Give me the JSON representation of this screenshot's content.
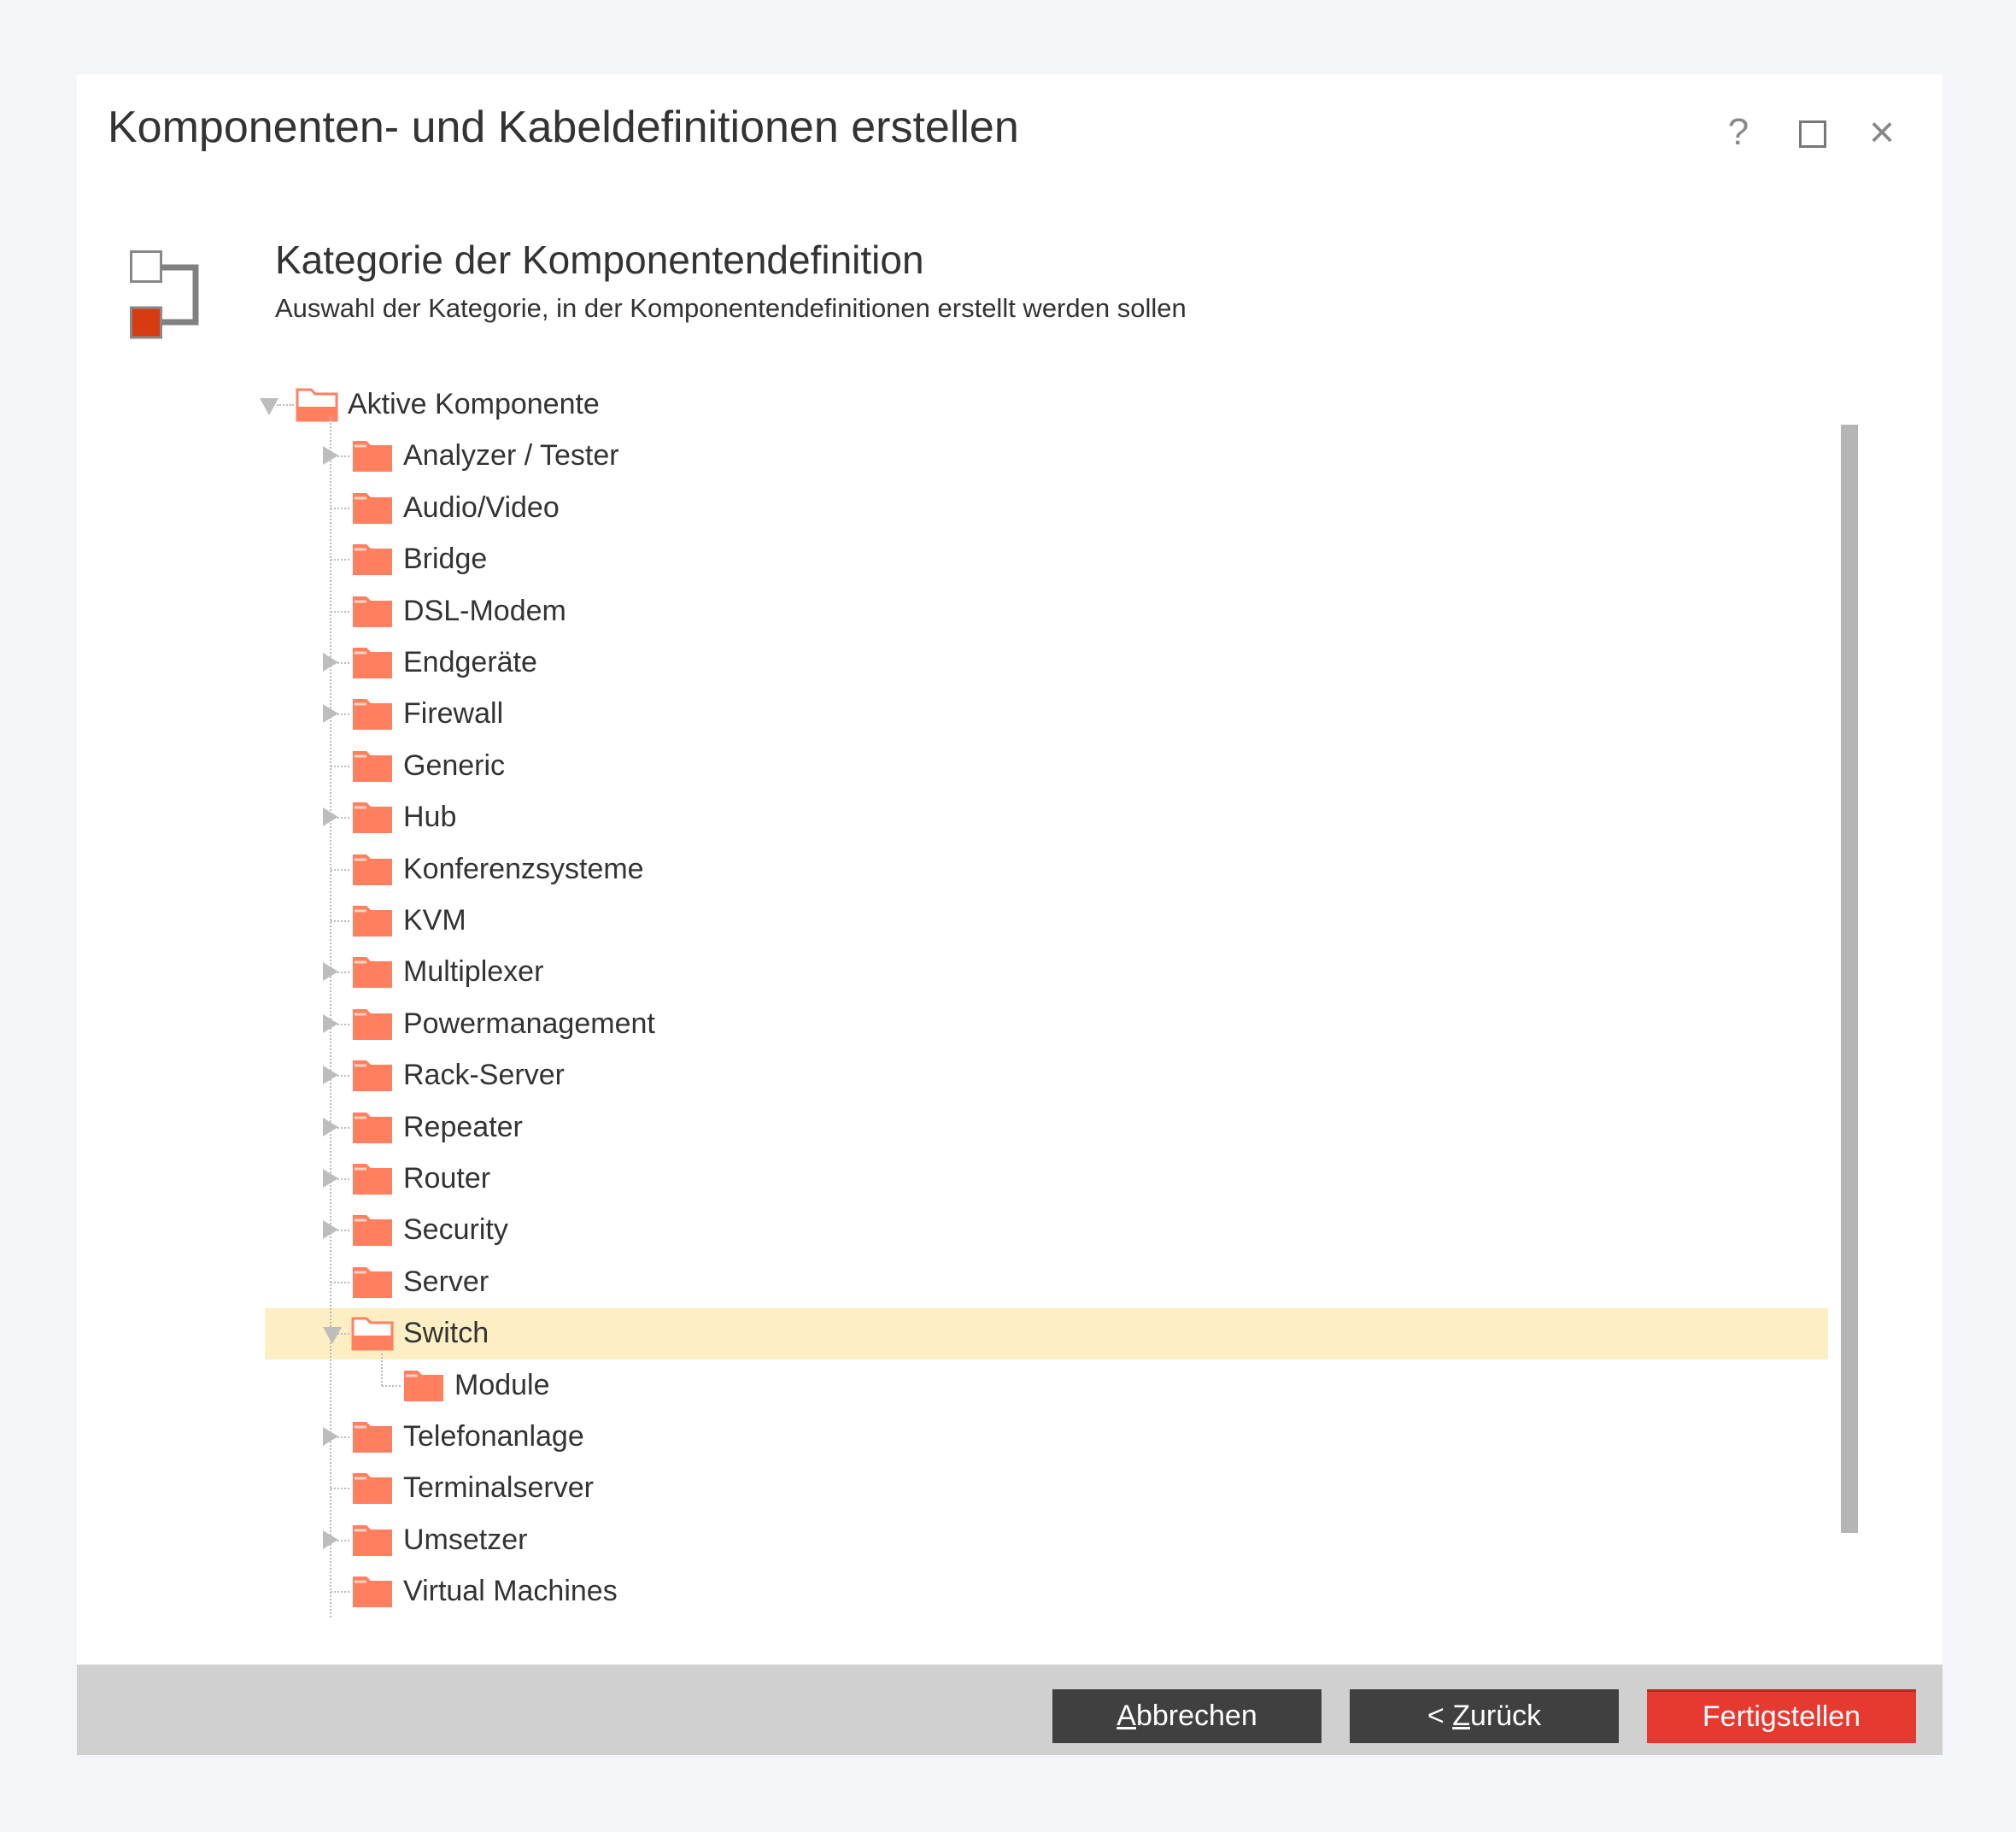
{
  "window": {
    "title": "Komponenten- und Kabeldefinitionen erstellen",
    "controls": {
      "help": "?",
      "close": "×"
    }
  },
  "header": {
    "icon": "component-hierarchy-icon",
    "title": "Kategorie der Komponentendefinition",
    "subtitle": "Auswahl der Kategorie, in der Komponentendefinitionen erstellt werden sollen"
  },
  "colors": {
    "accent": "#e63a30",
    "folder": "#ff7f5f",
    "selection": "#fdefc3",
    "button_dark": "#404040"
  },
  "tree": {
    "root": {
      "label": "Aktive Komponente",
      "expanded": true
    },
    "items": [
      {
        "label": "Analyzer / Tester",
        "expandable": true
      },
      {
        "label": "Audio/Video",
        "expandable": false
      },
      {
        "label": "Bridge",
        "expandable": false
      },
      {
        "label": "DSL-Modem",
        "expandable": false
      },
      {
        "label": "Endgeräte",
        "expandable": true
      },
      {
        "label": "Firewall",
        "expandable": true
      },
      {
        "label": "Generic",
        "expandable": false
      },
      {
        "label": "Hub",
        "expandable": true
      },
      {
        "label": "Konferenzsysteme",
        "expandable": false
      },
      {
        "label": "KVM",
        "expandable": false
      },
      {
        "label": "Multiplexer",
        "expandable": true
      },
      {
        "label": "Powermanagement",
        "expandable": true
      },
      {
        "label": "Rack-Server",
        "expandable": true
      },
      {
        "label": "Repeater",
        "expandable": true
      },
      {
        "label": "Router",
        "expandable": true
      },
      {
        "label": "Security",
        "expandable": true
      },
      {
        "label": "Server",
        "expandable": false
      },
      {
        "label": "Switch",
        "expandable": true,
        "expanded": true,
        "selected": true,
        "children": [
          {
            "label": "Module"
          }
        ]
      },
      {
        "label": "Telefonanlage",
        "expandable": true
      },
      {
        "label": "Terminalserver",
        "expandable": false
      },
      {
        "label": "Umsetzer",
        "expandable": true
      },
      {
        "label": "Virtual Machines",
        "expandable": false
      }
    ]
  },
  "footer": {
    "cancel": {
      "pre": "",
      "accel": "A",
      "rest": "bbrechen"
    },
    "back": {
      "pre": "< ",
      "accel": "Z",
      "rest": "urück"
    },
    "finish": "Fertigstellen"
  }
}
